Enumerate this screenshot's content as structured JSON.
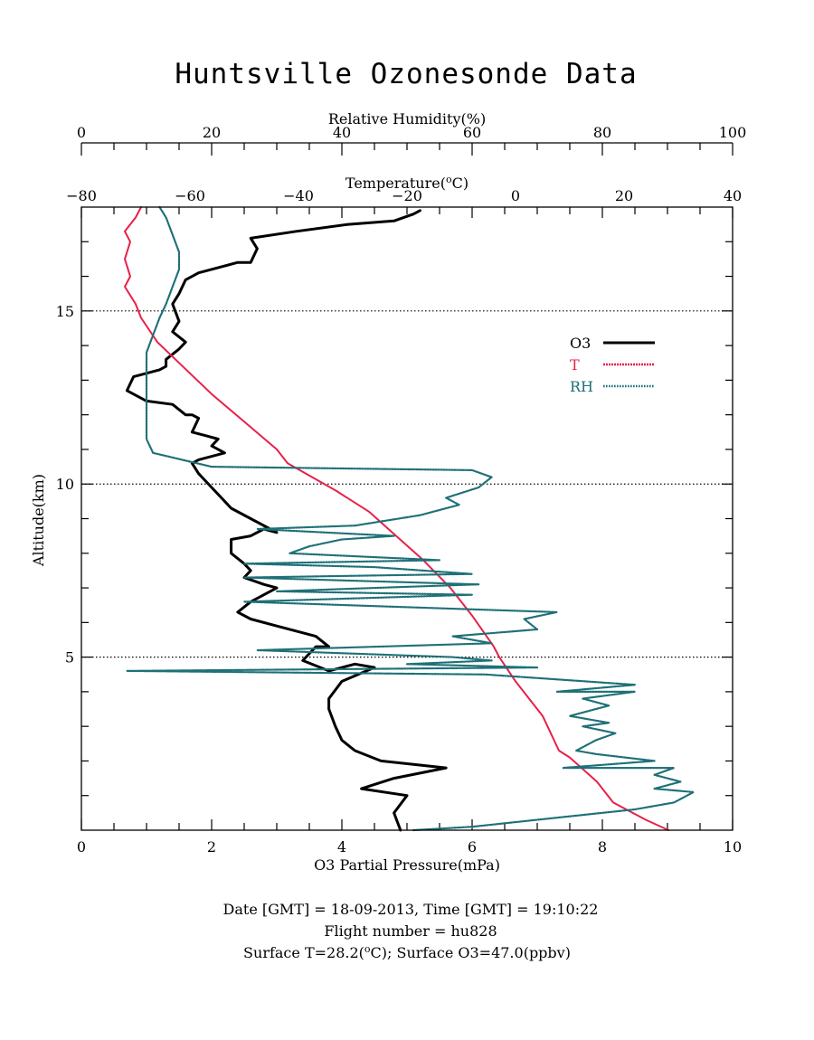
{
  "chart_data": {
    "type": "line",
    "title": "Huntsville Ozonesonde Data",
    "ylabel": "Altitude(km)",
    "ylim": [
      0,
      18
    ],
    "yticks": [
      5,
      10,
      15
    ],
    "reference_lines_y": [
      5,
      10,
      15
    ],
    "x_axes": {
      "bottom": {
        "label": "O3 Partial Pressure(mPa)",
        "range": [
          0,
          10
        ],
        "ticks": [
          0,
          2,
          4,
          6,
          8,
          10
        ]
      },
      "top_rh": {
        "label": "Relative Humidity(%)",
        "range": [
          0,
          100
        ],
        "ticks": [
          0,
          20,
          40,
          60,
          80,
          100
        ]
      },
      "top_temp": {
        "label": "Temperature(°C)",
        "label_prefix": "Temperature(",
        "label_sup": "o",
        "label_suffix": "C)",
        "range": [
          -80,
          40
        ],
        "ticks": [
          -80,
          -60,
          -40,
          -20,
          0,
          20,
          40
        ]
      }
    },
    "legend": {
      "placement": "right",
      "entries": [
        "O3",
        "T",
        "RH"
      ]
    },
    "series": [
      {
        "name": "O3",
        "axis": "bottom",
        "color": "#000000",
        "style": "solid",
        "points": [
          [
            4.9,
            0.0
          ],
          [
            4.8,
            0.5
          ],
          [
            5.0,
            1.0
          ],
          [
            4.3,
            1.2
          ],
          [
            4.8,
            1.5
          ],
          [
            5.6,
            1.8
          ],
          [
            4.6,
            2.0
          ],
          [
            4.2,
            2.3
          ],
          [
            4.0,
            2.6
          ],
          [
            3.9,
            3.0
          ],
          [
            3.8,
            3.5
          ],
          [
            3.8,
            3.8
          ],
          [
            4.0,
            4.3
          ],
          [
            4.5,
            4.7
          ],
          [
            4.2,
            4.8
          ],
          [
            3.8,
            4.6
          ],
          [
            3.4,
            4.9
          ],
          [
            3.6,
            5.3
          ],
          [
            3.8,
            5.3
          ],
          [
            3.6,
            5.6
          ],
          [
            3.0,
            5.9
          ],
          [
            2.6,
            6.1
          ],
          [
            2.4,
            6.3
          ],
          [
            2.6,
            6.6
          ],
          [
            2.9,
            6.9
          ],
          [
            3.0,
            7.0
          ],
          [
            2.8,
            7.1
          ],
          [
            2.5,
            7.3
          ],
          [
            2.6,
            7.5
          ],
          [
            2.5,
            7.7
          ],
          [
            2.3,
            8.0
          ],
          [
            2.3,
            8.4
          ],
          [
            2.6,
            8.5
          ],
          [
            2.8,
            8.7
          ],
          [
            3.0,
            8.6
          ],
          [
            2.6,
            9.0
          ],
          [
            2.3,
            9.3
          ],
          [
            2.0,
            9.9
          ],
          [
            1.8,
            10.3
          ],
          [
            1.7,
            10.6
          ],
          [
            1.8,
            10.7
          ],
          [
            2.2,
            10.9
          ],
          [
            2.0,
            11.1
          ],
          [
            2.1,
            11.3
          ],
          [
            1.9,
            11.4
          ],
          [
            1.7,
            11.5
          ],
          [
            1.8,
            11.9
          ],
          [
            1.7,
            12.0
          ],
          [
            1.6,
            12.0
          ],
          [
            1.4,
            12.3
          ],
          [
            1.0,
            12.4
          ],
          [
            0.7,
            12.7
          ],
          [
            0.8,
            13.1
          ],
          [
            1.2,
            13.3
          ],
          [
            1.3,
            13.4
          ],
          [
            1.3,
            13.6
          ],
          [
            1.5,
            13.9
          ],
          [
            1.6,
            14.1
          ],
          [
            1.4,
            14.4
          ],
          [
            1.5,
            14.7
          ],
          [
            1.4,
            15.2
          ],
          [
            1.5,
            15.5
          ],
          [
            1.6,
            15.9
          ],
          [
            1.8,
            16.1
          ],
          [
            2.4,
            16.4
          ],
          [
            2.6,
            16.4
          ],
          [
            2.7,
            16.8
          ],
          [
            2.6,
            17.1
          ],
          [
            3.3,
            17.3
          ],
          [
            4.1,
            17.5
          ],
          [
            4.8,
            17.6
          ],
          [
            5.1,
            17.8
          ],
          [
            5.2,
            17.9
          ]
        ]
      },
      {
        "name": "T",
        "axis": "top_temp",
        "color": "#e8204a",
        "style": "dotted-line",
        "points": [
          [
            28.2,
            0.0
          ],
          [
            24,
            0.3
          ],
          [
            18,
            0.8
          ],
          [
            15,
            1.4
          ],
          [
            10,
            2.1
          ],
          [
            8,
            2.3
          ],
          [
            5,
            3.3
          ],
          [
            0,
            4.3
          ],
          [
            -3,
            5.0
          ],
          [
            -4,
            5.3
          ],
          [
            -8,
            6.2
          ],
          [
            -12,
            7.0
          ],
          [
            -17,
            7.8
          ],
          [
            -22,
            8.5
          ],
          [
            -27,
            9.2
          ],
          [
            -33,
            9.8
          ],
          [
            -42,
            10.6
          ],
          [
            -44,
            11.0
          ],
          [
            -50,
            11.8
          ],
          [
            -56,
            12.6
          ],
          [
            -62,
            13.5
          ],
          [
            -66,
            14.1
          ],
          [
            -69,
            14.8
          ],
          [
            -70,
            15.2
          ],
          [
            -72,
            15.7
          ],
          [
            -71,
            16.0
          ],
          [
            -72,
            16.5
          ],
          [
            -71,
            17.0
          ],
          [
            -72,
            17.3
          ],
          [
            -70,
            17.7
          ],
          [
            -69,
            18.0
          ]
        ]
      },
      {
        "name": "RH",
        "axis": "top_rh",
        "color": "#1e7077",
        "style": "dotted",
        "points": [
          [
            51,
            0.0
          ],
          [
            60,
            0.1
          ],
          [
            70,
            0.3
          ],
          [
            85,
            0.6
          ],
          [
            91,
            0.8
          ],
          [
            94,
            1.1
          ],
          [
            88,
            1.2
          ],
          [
            92,
            1.4
          ],
          [
            88,
            1.6
          ],
          [
            91,
            1.8
          ],
          [
            74,
            1.8
          ],
          [
            88,
            2.0
          ],
          [
            79,
            2.2
          ],
          [
            76,
            2.3
          ],
          [
            79,
            2.6
          ],
          [
            82,
            2.8
          ],
          [
            77,
            3.0
          ],
          [
            81,
            3.1
          ],
          [
            75,
            3.3
          ],
          [
            81,
            3.6
          ],
          [
            77,
            3.8
          ],
          [
            85,
            4.0
          ],
          [
            73,
            4.0
          ],
          [
            85,
            4.2
          ],
          [
            62,
            4.5
          ],
          [
            7,
            4.6
          ],
          [
            70,
            4.7
          ],
          [
            50,
            4.8
          ],
          [
            63,
            4.9
          ],
          [
            57,
            5.0
          ],
          [
            27,
            5.2
          ],
          [
            63,
            5.4
          ],
          [
            57,
            5.6
          ],
          [
            70,
            5.8
          ],
          [
            68,
            6.1
          ],
          [
            73,
            6.3
          ],
          [
            25,
            6.6
          ],
          [
            60,
            6.8
          ],
          [
            30,
            6.9
          ],
          [
            45,
            7.0
          ],
          [
            61,
            7.1
          ],
          [
            25,
            7.3
          ],
          [
            60,
            7.4
          ],
          [
            45,
            7.6
          ],
          [
            25,
            7.7
          ],
          [
            55,
            7.8
          ],
          [
            32,
            8.0
          ],
          [
            35,
            8.2
          ],
          [
            40,
            8.4
          ],
          [
            48,
            8.5
          ],
          [
            27,
            8.7
          ],
          [
            42,
            8.8
          ],
          [
            52,
            9.1
          ],
          [
            58,
            9.4
          ],
          [
            56,
            9.6
          ],
          [
            61,
            9.9
          ],
          [
            63,
            10.2
          ],
          [
            60,
            10.4
          ],
          [
            20,
            10.5
          ],
          [
            11,
            10.9
          ],
          [
            10,
            11.3
          ],
          [
            10,
            12.0
          ],
          [
            10,
            13.0
          ],
          [
            10,
            13.8
          ],
          [
            11,
            14.3
          ],
          [
            12,
            14.8
          ],
          [
            13,
            15.2
          ],
          [
            14,
            15.7
          ],
          [
            15,
            16.2
          ],
          [
            15,
            16.7
          ],
          [
            14,
            17.2
          ],
          [
            13,
            17.7
          ],
          [
            12,
            18.0
          ]
        ]
      }
    ]
  },
  "footer": {
    "line1": "Date [GMT] = 18-09-2013,  Time [GMT] = 19:10:22",
    "line2": "Flight number = hu828",
    "line3_prefix": "Surface T=28.2(",
    "line3_sup": "o",
    "line3_suffix": "C); Surface O3=47.0(ppbv)"
  },
  "colors": {
    "o3": "#000000",
    "temperature": "#e8204a",
    "rh": "#1e7077"
  }
}
